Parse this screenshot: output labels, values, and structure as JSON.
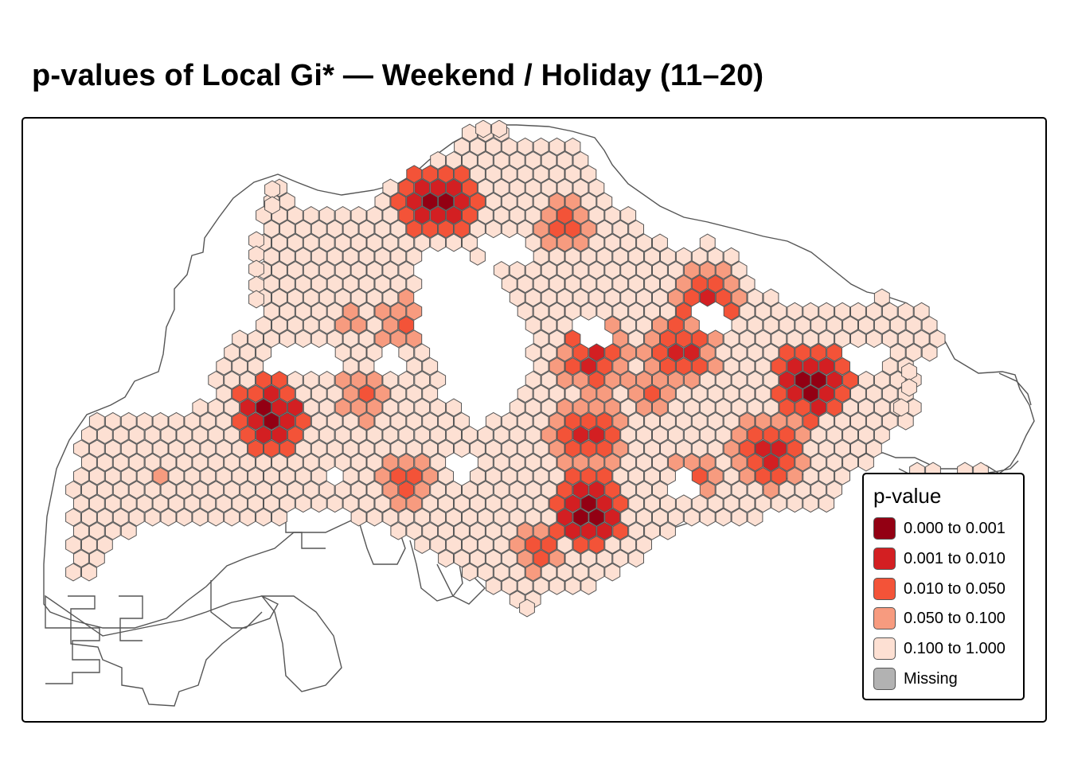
{
  "title": "p-values of Local Gi* — Weekend / Holiday (11–20)",
  "legend": {
    "title": "p-value",
    "items": [
      {
        "label": "0.000 to 0.001",
        "color": "#930013"
      },
      {
        "label": "0.001 to 0.010",
        "color": "#d31f22"
      },
      {
        "label": "0.010 to 0.050",
        "color": "#f35338"
      },
      {
        "label": "0.050 to 0.100",
        "color": "#f79b7f"
      },
      {
        "label": "0.100 to 1.000",
        "color": "#fde0d3"
      },
      {
        "label": "Missing",
        "color": "#b2b2b2"
      }
    ]
  },
  "map": {
    "hex_outline_color": "#555555",
    "coastline_color": "#555555"
  }
}
